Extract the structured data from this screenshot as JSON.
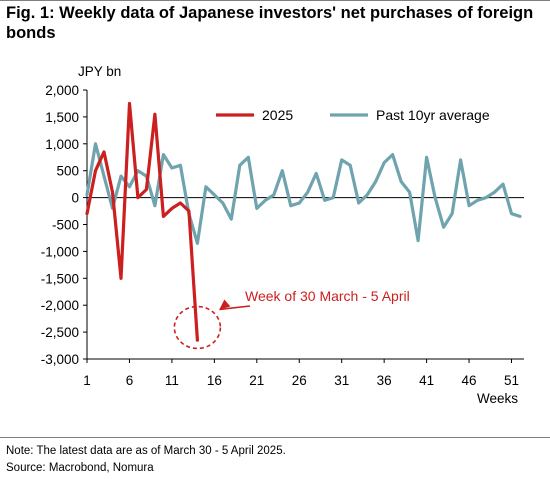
{
  "title": "Fig. 1: Weekly data of Japanese investors' net purchases of foreign bonds",
  "note": "Note: The latest data are as of March 30 - 5 April 2025.",
  "source": "Source: Macrobond, Nomura",
  "colors": {
    "series_2025": "#cc1f1f",
    "series_avg": "#6fa3ad",
    "annotation": "#cc1f1f",
    "rule": "#7f7f7f"
  },
  "chart_data": {
    "type": "line",
    "ylabel": "JPY bn",
    "xlabel": "Weeks",
    "xlim": [
      1,
      52
    ],
    "ylim": [
      -3000,
      2000
    ],
    "y_ticks": [
      2000,
      1500,
      1000,
      500,
      0,
      -500,
      -1000,
      -1500,
      -2000,
      -2500,
      -3000
    ],
    "y_tick_labels": [
      "2,000",
      "1,500",
      "1,000",
      "500",
      "0",
      "-500",
      "-1,000",
      "-1,500",
      "-2,000",
      "-2,500",
      "-3,000"
    ],
    "x_ticks": [
      1,
      6,
      11,
      16,
      21,
      26,
      31,
      36,
      41,
      46,
      51
    ],
    "x_tick_labels": [
      "1",
      "6",
      "11",
      "16",
      "21",
      "26",
      "31",
      "36",
      "41",
      "46",
      "51"
    ],
    "legend_position": "top-right",
    "series": [
      {
        "name": "2025",
        "x": [
          1,
          2,
          3,
          4,
          5,
          6,
          7,
          8,
          9,
          10,
          11,
          12,
          13,
          14
        ],
        "values": [
          -300,
          500,
          850,
          100,
          -1500,
          1750,
          0,
          150,
          1550,
          -350,
          -200,
          -100,
          -250,
          -2650
        ]
      },
      {
        "name": "Past 10yr average",
        "x": [
          1,
          2,
          3,
          4,
          5,
          6,
          7,
          8,
          9,
          10,
          11,
          12,
          13,
          14,
          15,
          16,
          17,
          18,
          19,
          20,
          21,
          22,
          23,
          24,
          25,
          26,
          27,
          28,
          29,
          30,
          31,
          32,
          33,
          34,
          35,
          36,
          37,
          38,
          39,
          40,
          41,
          42,
          43,
          44,
          45,
          46,
          47,
          48,
          49,
          50,
          51,
          52
        ],
        "values": [
          50,
          1000,
          400,
          -200,
          400,
          200,
          500,
          400,
          -150,
          800,
          550,
          600,
          -300,
          -850,
          200,
          50,
          -100,
          -400,
          600,
          750,
          -200,
          -50,
          50,
          500,
          -150,
          -100,
          100,
          450,
          -50,
          0,
          700,
          600,
          -100,
          50,
          300,
          650,
          800,
          300,
          100,
          -800,
          750,
          0,
          -550,
          -300,
          700,
          -150,
          -50,
          0,
          100,
          250,
          -300,
          -350
        ]
      }
    ],
    "annotation": {
      "text": "Week of 30 March - 5 April",
      "x": 14,
      "y": -2600
    }
  }
}
